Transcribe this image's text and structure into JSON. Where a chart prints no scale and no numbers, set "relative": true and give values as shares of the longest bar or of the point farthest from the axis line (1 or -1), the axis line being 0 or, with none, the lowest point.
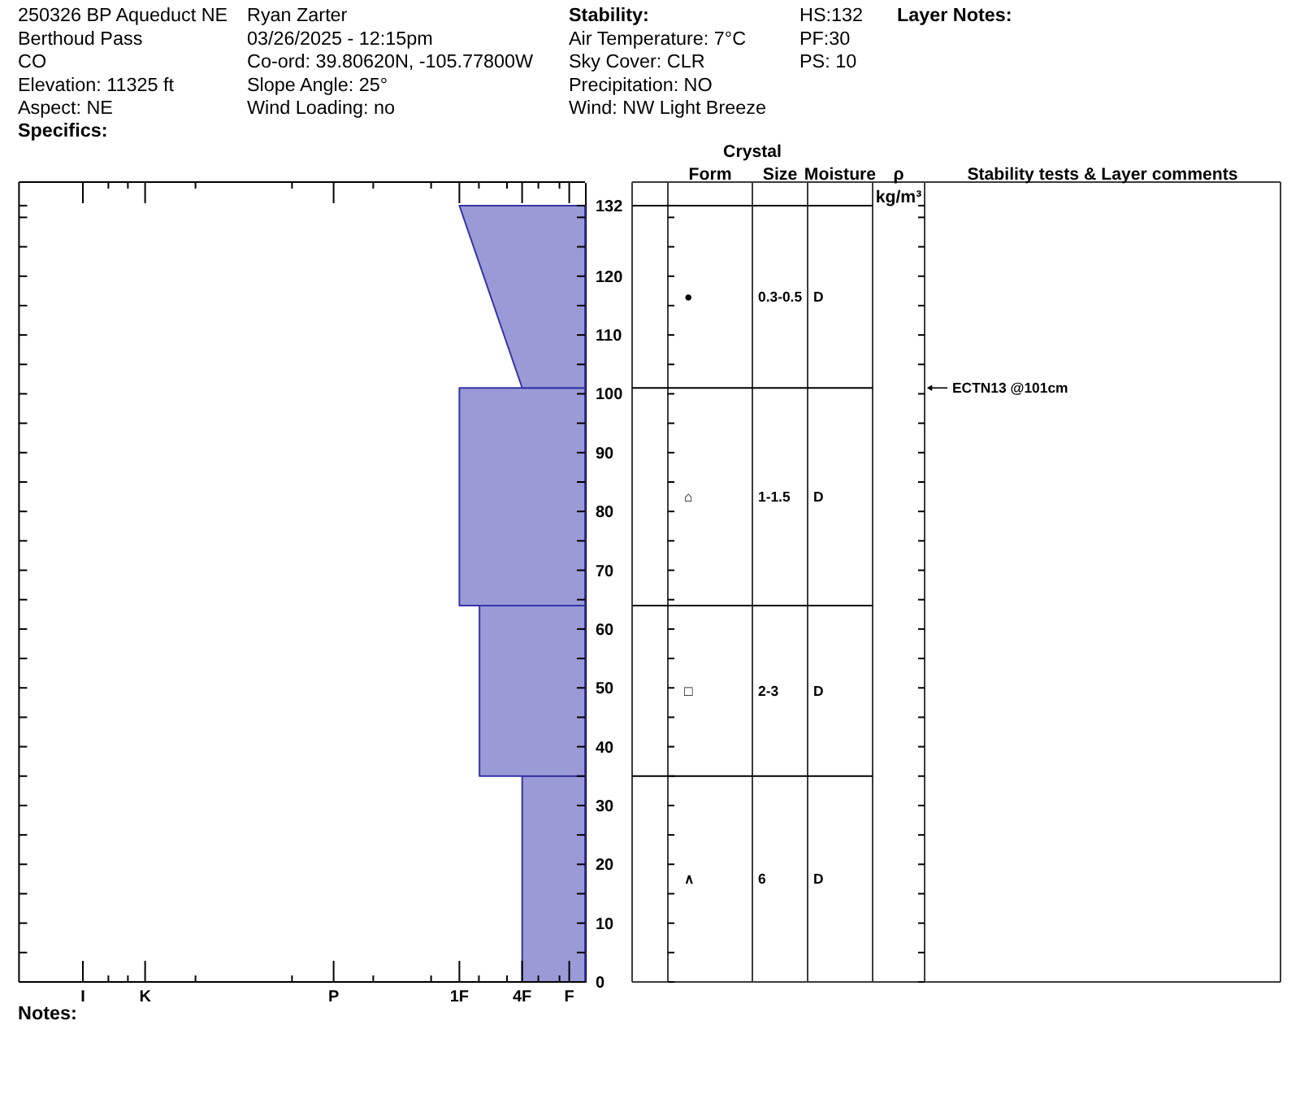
{
  "chart_data": [
    {
      "type": "area",
      "orientation": "horizontal",
      "relative": true,
      "series": [
        {
          "x": [
            0,
            35
          ],
          "values": [
            -0.5,
            -0.5
          ],
          "color": "#9a9ad6"
        },
        {
          "x": [
            35,
            64
          ],
          "values": [
            -0.84,
            -0.84
          ],
          "color": "#9a9ad6"
        },
        {
          "x": [
            64,
            101
          ],
          "values": [
            -1,
            -1
          ],
          "color": "#9a9ad6"
        },
        {
          "x": [
            101,
            132
          ],
          "values": [
            -0.5,
            -1
          ],
          "color": "#9a9ad6"
        }
      ],
      "ylim": [
        0,
        136
      ],
      "yticks": [
        0,
        {
          "value": 5,
          "label": null
        },
        10,
        {
          "value": 15,
          "label": null
        },
        20,
        {
          "value": 25,
          "label": null
        },
        30,
        {
          "value": 35,
          "label": null
        },
        40,
        {
          "value": 45,
          "label": null
        },
        50,
        {
          "value": 55,
          "label": null
        },
        60,
        {
          "value": 65,
          "label": null
        },
        70,
        {
          "value": 75,
          "label": null
        },
        80,
        {
          "value": 85,
          "label": null
        },
        90,
        {
          "value": 95,
          "label": null
        },
        100,
        {
          "value": 105,
          "label": null
        },
        110,
        {
          "value": 115,
          "label": null
        },
        120,
        {
          "value": 125,
          "label": null
        },
        {
          "value": 130,
          "label": null
        },
        132
      ],
      "tick_labels": "y",
      "annotations": [
        "250326 BP Aqueduct NE\nBerthoud Pass\nCO\nElevation: 11325 ft\nAspect: NE\nSpecifics:",
        "Ryan Zarter\n03/26/2025 - 12:15pm\nCo-ord: 39.80620N, -105.77800W\nSlope Angle: 25°\nWind Loading: no",
        "Stability:\nAir Temperature: 7°C\nSky Cover: CLR\nPrecipitation: NO\nWind: NW Light Breeze",
        "HS:132\nPF:30\nPS: 10",
        "Layer Notes:",
        "I",
        "K",
        "P",
        "1F",
        "4F",
        "F",
        "Notes:"
      ]
    },
    {
      "type": "other",
      "title": "Crystal",
      "categories": [
        null,
        "Form",
        "Size",
        "Moisture",
        "ρ\nkg/m³",
        "Stability tests & Layer comments"
      ],
      "annotations": [
        "●",
        "0.3-0.5",
        "D",
        "⌂",
        "1-1.5",
        "D",
        "□",
        "2-3",
        "D",
        "∧",
        "6",
        "D",
        "ECTN13 @101cm"
      ]
    }
  ]
}
